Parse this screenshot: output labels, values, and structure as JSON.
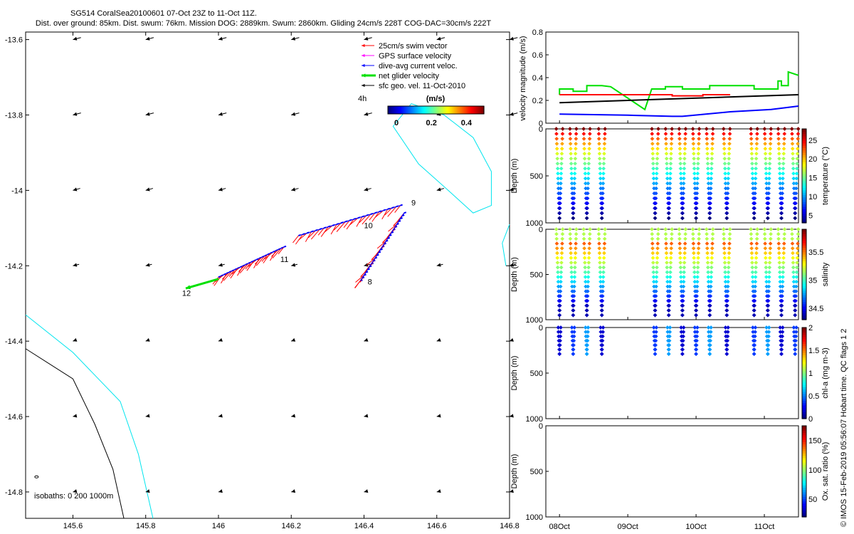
{
  "header": {
    "title": "SG514 CoralSea20100601 07-Oct 23Z to 11-Oct 11Z.",
    "subtitle": "Dist. over ground: 85km. Dist. swum: 76km. Mission DOG: 2889km. Swum: 2860km. Gliding 24cm/s 228T COG-DAC=30cm/s 222T"
  },
  "footer_text": "© IMOS 15-Feb-2019 05:56:07 Hobart time. QC flags 1  2",
  "colors": {
    "swim": "#ff0000",
    "gps": "#ff00ff",
    "dac": "#0000ff",
    "net": "#00e000",
    "geo": "#000000",
    "isobath_0": "#000000",
    "isobath_200": "#00e5ee",
    "velocity_black": "#000000"
  },
  "chart_data": [
    {
      "type": "map",
      "xlim": [
        145.47,
        146.8
      ],
      "ylim": [
        -14.87,
        -13.58
      ],
      "x_ticks": [
        145.6,
        145.8,
        146,
        146.2,
        146.4,
        146.6,
        146.8
      ],
      "x_tick_labels": [
        "145.6",
        "145.8",
        "146",
        "146.2",
        "146.4",
        "146.6",
        "146.8"
      ],
      "y_ticks": [
        -13.6,
        -13.8,
        -14,
        -14.2,
        -14.4,
        -14.6,
        -14.8
      ],
      "y_tick_labels": [
        "-13.6",
        "-13.8",
        "-14",
        "-14.2",
        "-14.4",
        "-14.6",
        "-14.8"
      ],
      "legend": [
        {
          "label": "25cm/s swim vector",
          "color_key": "swim"
        },
        {
          "label": "GPS surface velocity",
          "color_key": "gps"
        },
        {
          "label": "dive-avg current veloc.",
          "color_key": "dac"
        },
        {
          "label": "net glider velocity",
          "color_key": "net"
        },
        {
          "label": "sfc geo. vel. 11-Oct-2010",
          "color_key": "geo"
        }
      ],
      "legend_note": "4h",
      "colorbar": {
        "title": "(m/s)",
        "range": [
          0,
          0.5
        ],
        "tick_values": [
          0,
          0.2,
          0.4
        ],
        "tick_labels": [
          "0",
          "0.2",
          "0.4"
        ],
        "colormap": "jet"
      },
      "isobaths_label": "isobaths: 0   200  1000m",
      "geo_vector_rows": [
        {
          "lat": -13.6,
          "u": -0.022,
          "v": -0.0055
        },
        {
          "lat": -13.8,
          "u": -0.022,
          "v": -0.0055
        },
        {
          "lat": -14.0,
          "u": -0.02,
          "v": -0.0055
        },
        {
          "lat": -14.2,
          "u": -0.017,
          "v": -0.004
        },
        {
          "lat": -14.4,
          "u": -0.008,
          "v": -0.003
        },
        {
          "lat": -14.6,
          "u": -0.005,
          "v": -0.001
        },
        {
          "lat": -14.8,
          "u": -0.004,
          "v": -0.001
        }
      ],
      "geo_lons": [
        145.6,
        145.8,
        146,
        146.2,
        146.4,
        146.6,
        146.8
      ],
      "track_segments": [
        {
          "from": [
            146.0,
            -14.23
          ],
          "to": [
            146.18,
            -14.15
          ]
        },
        {
          "from": [
            146.22,
            -14.12
          ],
          "to": [
            146.5,
            -14.04
          ]
        },
        {
          "from": [
            146.39,
            -14.24
          ],
          "to": [
            146.51,
            -14.06
          ]
        }
      ],
      "track_labels": [
        {
          "text": "12",
          "lon": 145.9,
          "lat": -14.28
        },
        {
          "text": "8",
          "lon": 146.41,
          "lat": -14.25
        },
        {
          "text": "9",
          "lon": 146.53,
          "lat": -14.04
        },
        {
          "text": "10",
          "lon": 146.4,
          "lat": -14.1
        },
        {
          "text": "11",
          "lon": 146.17,
          "lat": -14.19
        }
      ],
      "isobath_0": [
        [
          145.47,
          -14.42
        ],
        [
          145.6,
          -14.5
        ],
        [
          145.66,
          -14.62
        ],
        [
          145.71,
          -14.74
        ],
        [
          145.74,
          -14.87
        ]
      ],
      "isobath_200": [
        [
          145.47,
          -14.33
        ],
        [
          145.6,
          -14.43
        ],
        [
          145.73,
          -14.56
        ],
        [
          145.78,
          -14.7
        ],
        [
          145.82,
          -14.87
        ]
      ],
      "contour_ne": [
        [
          146.53,
          -13.77
        ],
        [
          146.48,
          -13.83
        ],
        [
          146.55,
          -13.93
        ],
        [
          146.62,
          -13.99
        ],
        [
          146.7,
          -14.06
        ],
        [
          146.75,
          -14.04
        ],
        [
          146.75,
          -13.95
        ],
        [
          146.7,
          -13.86
        ],
        [
          146.62,
          -13.8
        ],
        [
          146.53,
          -13.77
        ]
      ],
      "contour_e": [
        [
          146.8,
          -14.09
        ],
        [
          146.78,
          -14.14
        ],
        [
          146.79,
          -14.2
        ]
      ]
    },
    {
      "type": "line",
      "ylabel": "velocity magnitude (m/s)",
      "ylim": [
        0,
        0.8
      ],
      "y_ticks": [
        0,
        0.2,
        0.4,
        0.6,
        0.8
      ],
      "y_tick_labels": [
        "0",
        "0.2",
        "0.4",
        "0.6",
        "0.8"
      ],
      "x_tick_labels": [
        "08Oct",
        "09Oct",
        "10Oct",
        "11Oct"
      ],
      "x_range_days": [
        7.8,
        11.5
      ],
      "series": [
        {
          "color_key": "net",
          "x": [
            8.0,
            8.0,
            8.2,
            8.2,
            8.4,
            8.4,
            8.62,
            8.75,
            9.25,
            9.35,
            9.35,
            9.55,
            9.55,
            9.8,
            9.8,
            10.2,
            10.2,
            10.55,
            10.55,
            10.85,
            10.85,
            11.2,
            11.2,
            11.25,
            11.25,
            11.35,
            11.35,
            11.5
          ],
          "y": [
            0.25,
            0.3,
            0.3,
            0.28,
            0.28,
            0.33,
            0.33,
            0.32,
            0.12,
            0.3,
            0.3,
            0.3,
            0.32,
            0.32,
            0.3,
            0.3,
            0.33,
            0.33,
            0.33,
            0.33,
            0.3,
            0.3,
            0.37,
            0.37,
            0.33,
            0.33,
            0.45,
            0.42
          ]
        },
        {
          "color_key": "swim",
          "x": [
            8.0,
            8.75,
            9.35,
            9.65,
            9.65,
            10.1,
            10.1,
            10.5
          ],
          "y": [
            0.25,
            0.25,
            0.25,
            0.25,
            0.24,
            0.24,
            0.25,
            0.25
          ]
        },
        {
          "color_key": "velocity_black",
          "x": [
            8.0,
            11.5
          ],
          "y": [
            0.18,
            0.25
          ]
        },
        {
          "color_key": "dac",
          "x": [
            8.0,
            9.0,
            9.65,
            9.8,
            10.5,
            11.1,
            11.5
          ],
          "y": [
            0.08,
            0.07,
            0.06,
            0.06,
            0.1,
            0.12,
            0.15
          ]
        }
      ]
    },
    {
      "type": "scatter",
      "ylabel": "Depth (m)",
      "ylim": [
        0,
        1000
      ],
      "y_ticks": [
        0,
        500,
        1000
      ],
      "y_tick_labels": [
        "0",
        "500",
        "1000"
      ],
      "colorbar": {
        "label": "temperature (°C)",
        "range": [
          3,
          28
        ],
        "tick_values": [
          5,
          10,
          15,
          20,
          25
        ],
        "tick_labels": [
          "5",
          "10",
          "15",
          "20",
          "25"
        ]
      },
      "dive_times": [
        8.0,
        8.2,
        8.4,
        8.62,
        9.4,
        9.6,
        9.8,
        10.0,
        10.2,
        10.45,
        10.85,
        11.05,
        11.25,
        11.45
      ],
      "max_depth": 950
    },
    {
      "type": "scatter",
      "ylabel": "Depth (m)",
      "ylim": [
        0,
        1000
      ],
      "y_ticks": [
        0,
        500,
        1000
      ],
      "y_tick_labels": [
        "0",
        "500",
        "1000"
      ],
      "colorbar": {
        "label": "salinity",
        "range": [
          34.3,
          35.9
        ],
        "tick_values": [
          34.5,
          35,
          35.5
        ],
        "tick_labels": [
          "34.5",
          "35",
          "35.5"
        ]
      },
      "dive_times": [
        8.0,
        8.2,
        8.4,
        8.62,
        9.4,
        9.6,
        9.8,
        10.0,
        10.2,
        10.45,
        10.85,
        11.05,
        11.25,
        11.45
      ],
      "max_depth": 950
    },
    {
      "type": "scatter",
      "ylabel": "Depth (m)",
      "ylim": [
        0,
        1000
      ],
      "y_ticks": [
        0,
        500,
        1000
      ],
      "y_tick_labels": [
        "0",
        "500",
        "1000"
      ],
      "colorbar": {
        "label": "chl-a (mg m-3)",
        "range": [
          0,
          2
        ],
        "tick_values": [
          0,
          0.5,
          1,
          1.5,
          2
        ],
        "tick_labels": [
          "0",
          "0.5",
          "1",
          "1.5",
          "2"
        ]
      },
      "dive_times": [
        8.0,
        8.2,
        8.4,
        8.62,
        9.4,
        9.6,
        9.8,
        10.0,
        10.2,
        10.45,
        10.85,
        11.05,
        11.25,
        11.45
      ],
      "max_depth": 290
    },
    {
      "type": "scatter",
      "ylabel": "Depth (m)",
      "ylim": [
        0,
        1000
      ],
      "y_ticks": [
        0,
        500,
        1000
      ],
      "y_tick_labels": [
        "0",
        "500",
        "1000"
      ],
      "x_tick_labels": [
        "08Oct",
        "09Oct",
        "10Oct",
        "11Oct"
      ],
      "colorbar": {
        "label": "Ox. sat. ratio (%)",
        "range": [
          20,
          175
        ],
        "tick_values": [
          50,
          100,
          150
        ],
        "tick_labels": [
          "50",
          "100",
          "150"
        ]
      }
    }
  ]
}
